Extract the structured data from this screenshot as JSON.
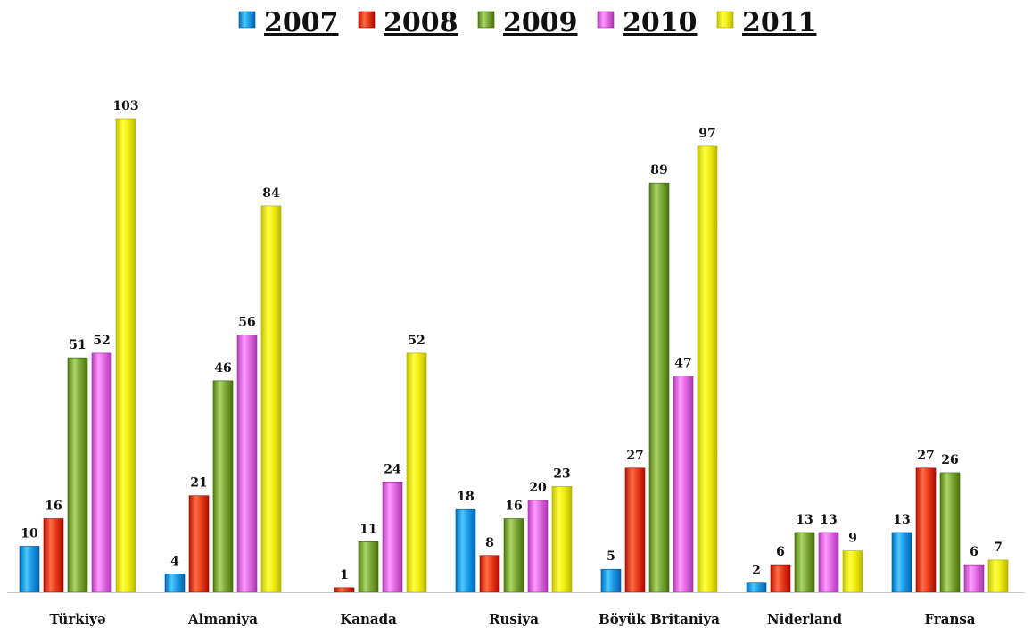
{
  "chart_data": {
    "type": "bar",
    "categories": [
      "Türkiyə",
      "Almaniya",
      "Kanada",
      "Rusiya",
      "Böyük Britaniya",
      "Niderland",
      "Fransa"
    ],
    "series": [
      {
        "name": "2007",
        "color": "#1e9ce8",
        "values": [
          10,
          4,
          null,
          18,
          5,
          2,
          13
        ]
      },
      {
        "name": "2008",
        "color": "#e8401a",
        "values": [
          16,
          21,
          1,
          8,
          27,
          6,
          27
        ]
      },
      {
        "name": "2009",
        "color": "#7faa3c",
        "values": [
          51,
          46,
          11,
          16,
          89,
          13,
          26
        ]
      },
      {
        "name": "2010",
        "color": "#e36de6",
        "values": [
          52,
          56,
          24,
          20,
          47,
          13,
          6
        ]
      },
      {
        "name": "2011",
        "color": "#f2ef14",
        "values": [
          103,
          84,
          52,
          23,
          97,
          9,
          7
        ]
      }
    ],
    "ylim": [
      0,
      103
    ],
    "grid": false,
    "legend_position": "top-center",
    "show_data_labels": true
  }
}
